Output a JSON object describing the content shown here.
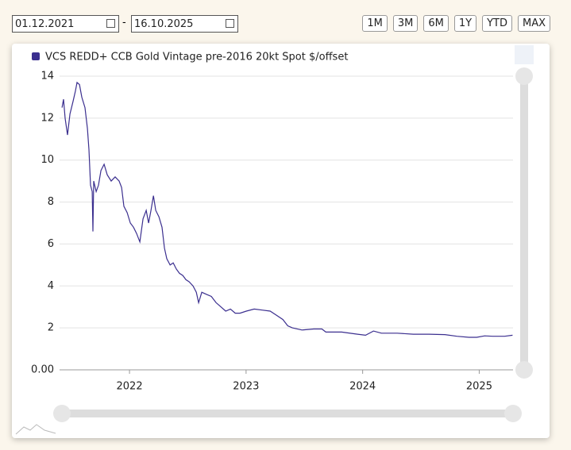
{
  "controls": {
    "date_from": "01.12.2021",
    "separator": "-",
    "date_to": "16.10.2025",
    "range_buttons": [
      "1M",
      "3M",
      "6M",
      "1Y",
      "YTD",
      "MAX"
    ]
  },
  "chart_data": {
    "type": "line",
    "series": [
      {
        "name": "VCS REDD+ CCB Gold Vintage pre-2016 20kt Spot $/offset",
        "color": "#3b2f8f",
        "x": [
          2021.421,
          2021.434,
          2021.448,
          2021.468,
          2021.489,
          2021.516,
          2021.536,
          2021.55,
          2021.571,
          2021.591,
          2021.618,
          2021.639,
          2021.652,
          2021.666,
          2021.68,
          2021.686,
          2021.693,
          2021.714,
          2021.734,
          2021.755,
          2021.782,
          2021.809,
          2021.843,
          2021.877,
          2021.911,
          2021.932,
          2021.952,
          2021.98,
          2022.007,
          2022.034,
          2022.061,
          2022.089,
          2022.116,
          2022.143,
          2022.164,
          2022.184,
          2022.205,
          2022.225,
          2022.252,
          2022.279,
          2022.3,
          2022.32,
          2022.348,
          2022.375,
          2022.402,
          2022.429,
          2022.457,
          2022.484,
          2022.511,
          2022.545,
          2022.573,
          2022.593,
          2022.62,
          2022.661,
          2022.702,
          2022.743,
          2022.784,
          2022.825,
          2022.866,
          2022.907,
          2022.948,
          2023.002,
          2023.07,
          2023.138,
          2023.207,
          2023.261,
          2023.316,
          2023.357,
          2023.397,
          2023.479,
          2023.581,
          2023.65,
          2023.684,
          2023.82,
          2023.956,
          2024.025,
          2024.093,
          2024.161,
          2024.297,
          2024.434,
          2024.57,
          2024.706,
          2024.809,
          2024.911,
          2024.979,
          2025.047,
          2025.115,
          2025.218,
          2025.286
        ],
        "values": [
          12.5,
          12.9,
          12.0,
          11.2,
          12.2,
          12.8,
          13.3,
          13.7,
          13.6,
          13.0,
          12.5,
          11.5,
          10.5,
          8.8,
          8.5,
          6.6,
          9.0,
          8.5,
          8.8,
          9.5,
          9.8,
          9.3,
          9.0,
          9.2,
          9.0,
          8.7,
          7.8,
          7.5,
          7.0,
          6.8,
          6.5,
          6.1,
          7.2,
          7.6,
          7.0,
          7.6,
          8.3,
          7.6,
          7.3,
          6.8,
          5.8,
          5.3,
          5.0,
          5.1,
          4.8,
          4.6,
          4.5,
          4.3,
          4.2,
          4.0,
          3.7,
          3.2,
          3.7,
          3.6,
          3.5,
          3.2,
          3.0,
          2.8,
          2.9,
          2.7,
          2.7,
          2.8,
          2.9,
          2.85,
          2.8,
          2.6,
          2.4,
          2.1,
          2.0,
          1.9,
          1.95,
          1.95,
          1.8,
          1.8,
          1.7,
          1.65,
          1.85,
          1.75,
          1.75,
          1.7,
          1.7,
          1.68,
          1.6,
          1.55,
          1.55,
          1.62,
          1.6,
          1.6,
          1.65
        ]
      }
    ],
    "xlim": [
      2021.4,
      2025.29
    ],
    "xticks": [
      2022,
      2023,
      2024,
      2025
    ],
    "ylim": [
      0,
      14
    ],
    "yticks": [
      {
        "value": 0,
        "label": "0.00"
      },
      2,
      4,
      6,
      8,
      10,
      12,
      14
    ],
    "grid": true
  }
}
